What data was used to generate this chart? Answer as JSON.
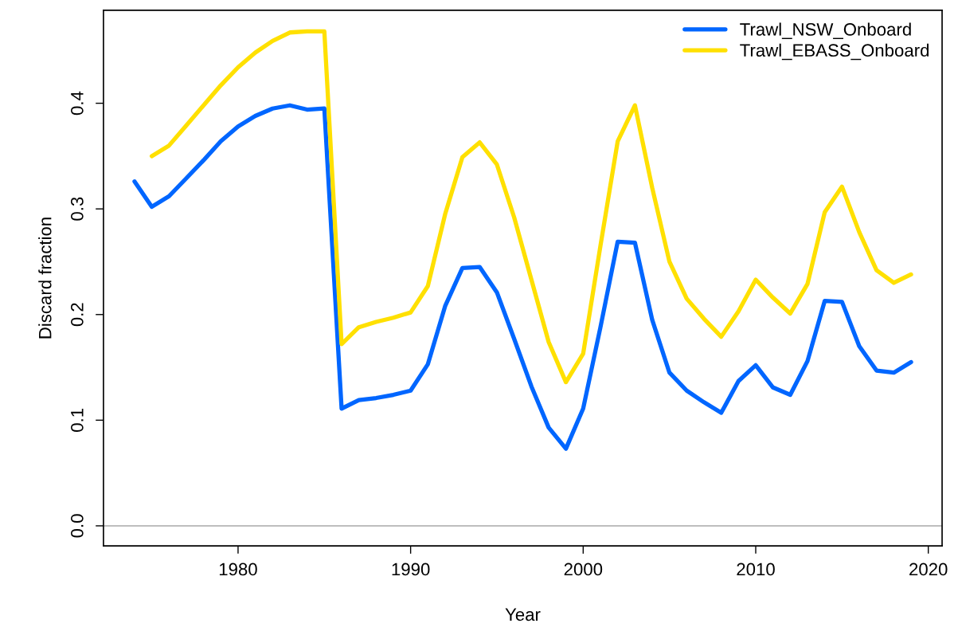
{
  "chart_data": {
    "type": "line",
    "xlabel": "Year",
    "ylabel": "Discard fraction",
    "x": [
      1974,
      1975,
      1976,
      1977,
      1978,
      1979,
      1980,
      1981,
      1982,
      1983,
      1984,
      1985,
      1986,
      1987,
      1988,
      1989,
      1990,
      1991,
      1992,
      1993,
      1994,
      1995,
      1996,
      1997,
      1998,
      1999,
      2000,
      2001,
      2002,
      2003,
      2004,
      2005,
      2006,
      2007,
      2008,
      2009,
      2010,
      2011,
      2012,
      2013,
      2014,
      2015,
      2016,
      2017,
      2018,
      2019
    ],
    "series": [
      {
        "name": "Trawl_NSW_Onboard",
        "color": "#0066ff",
        "values": [
          0.326,
          0.302,
          0.312,
          0.329,
          0.346,
          0.364,
          0.378,
          0.388,
          0.395,
          0.398,
          0.394,
          0.395,
          0.111,
          0.119,
          0.121,
          0.124,
          0.128,
          0.153,
          0.208,
          0.244,
          0.245,
          0.221,
          0.177,
          0.132,
          0.093,
          0.073,
          0.111,
          0.188,
          0.269,
          0.268,
          0.195,
          0.145,
          0.128,
          0.117,
          0.107,
          0.137,
          0.152,
          0.131,
          0.124,
          0.156,
          0.213,
          0.212,
          0.17,
          0.147,
          0.145,
          0.155
        ]
      },
      {
        "name": "Trawl_EBASS_Onboard",
        "color": "#ffe000",
        "x": [
          1975,
          1976,
          1977,
          1978,
          1979,
          1980,
          1981,
          1982,
          1983,
          1984,
          1985,
          1986,
          1987,
          1988,
          1989,
          1990,
          1991,
          1992,
          1993,
          1994,
          1995,
          1996,
          1997,
          1998,
          1999,
          2000,
          2001,
          2002,
          2003,
          2004,
          2005,
          2006,
          2007,
          2008,
          2009,
          2010,
          2011,
          2012,
          2013,
          2014,
          2015,
          2016,
          2017,
          2018,
          2019
        ],
        "values": [
          0.35,
          0.36,
          0.379,
          0.398,
          0.417,
          0.434,
          0.448,
          0.459,
          0.467,
          0.468,
          0.468,
          0.172,
          0.188,
          0.193,
          0.197,
          0.202,
          0.227,
          0.295,
          0.349,
          0.363,
          0.342,
          0.292,
          0.233,
          0.174,
          0.136,
          0.163,
          0.265,
          0.364,
          0.398,
          0.32,
          0.25,
          0.215,
          0.196,
          0.179,
          0.203,
          0.233,
          0.216,
          0.201,
          0.229,
          0.297,
          0.321,
          0.278,
          0.242,
          0.23,
          0.238
        ]
      }
    ],
    "xlim": [
      1972.2,
      2020.8
    ],
    "ylim": [
      -0.019,
      0.488
    ],
    "xticks": [
      1980,
      1990,
      2000,
      2010,
      2020
    ],
    "yticks": [
      {
        "value": 0,
        "label": "0.0"
      },
      0.1,
      0.2,
      0.3,
      0.4
    ],
    "legend": "top right",
    "line_style": "solid",
    "ref_lines": [
      {
        "axis": "y",
        "value": 0,
        "color": "#bebebe"
      }
    ]
  }
}
